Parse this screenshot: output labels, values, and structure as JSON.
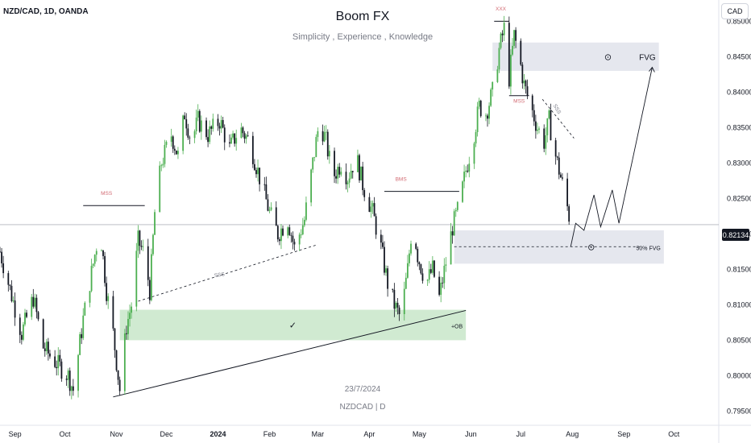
{
  "header": {
    "symbol_line": "NZD/CAD, 1D, OANDA",
    "currency_button": "CAD",
    "title": "Boom FX",
    "subtitle": "Simplicity , Experience , Knowledge",
    "watermark_date": "23/7/2024",
    "watermark_symbol": "NZDCAD | D",
    "last_price": "0.82134"
  },
  "colors": {
    "up": "#4caf50",
    "down": "#131722",
    "ob_zone": "#c8e6c9",
    "fvg_zone": "#e0e3eb",
    "annotation_red": "#d26a72"
  },
  "chart_data": {
    "type": "candlestick",
    "ylim": [
      0.793,
      0.853
    ],
    "y_ticks": [
      0.795,
      0.8,
      0.805,
      0.81,
      0.815,
      0.82,
      0.825,
      0.83,
      0.835,
      0.84,
      0.845,
      0.85
    ],
    "y_tick_labels": [
      "0.79500",
      "0.80000",
      "0.80500",
      "0.81000",
      "0.81500",
      "0.82000",
      "0.82500",
      "0.83000",
      "0.83500",
      "0.84000",
      "0.84500",
      "0.85000"
    ],
    "x_range": [
      "2023-08-23",
      "2024-10-28"
    ],
    "x_ticks": [
      {
        "date": "2023-09-01",
        "label": "Sep",
        "bold": false
      },
      {
        "date": "2023-10-01",
        "label": "Oct",
        "bold": false
      },
      {
        "date": "2023-11-01",
        "label": "Nov",
        "bold": false
      },
      {
        "date": "2023-12-01",
        "label": "Dec",
        "bold": false
      },
      {
        "date": "2024-01-01",
        "label": "2024",
        "bold": true
      },
      {
        "date": "2024-02-01",
        "label": "Feb",
        "bold": false
      },
      {
        "date": "2024-03-01",
        "label": "Mar",
        "bold": false
      },
      {
        "date": "2024-04-01",
        "label": "Apr",
        "bold": false
      },
      {
        "date": "2024-05-01",
        "label": "May",
        "bold": false
      },
      {
        "date": "2024-06-01",
        "label": "Jun",
        "bold": false
      },
      {
        "date": "2024-07-01",
        "label": "Jul",
        "bold": false
      },
      {
        "date": "2024-08-01",
        "label": "Aug",
        "bold": false
      },
      {
        "date": "2024-09-01",
        "label": "Sep",
        "bold": false
      },
      {
        "date": "2024-10-01",
        "label": "Oct",
        "bold": false
      }
    ],
    "price_path": [
      [
        "2023-08-23",
        0.8175
      ],
      [
        "2023-09-05",
        0.806
      ],
      [
        "2023-09-12",
        0.811
      ],
      [
        "2023-09-18",
        0.804
      ],
      [
        "2023-09-25",
        0.802
      ],
      [
        "2023-10-03",
        0.8
      ],
      [
        "2023-10-06",
        0.798
      ],
      [
        "2023-10-12",
        0.808
      ],
      [
        "2023-10-17",
        0.8145
      ],
      [
        "2023-10-22",
        0.821
      ],
      [
        "2023-10-26",
        0.812
      ],
      [
        "2023-10-30",
        0.806
      ],
      [
        "2023-11-03",
        0.798
      ],
      [
        "2023-11-07",
        0.807
      ],
      [
        "2023-11-10",
        0.81
      ],
      [
        "2023-11-14",
        0.819
      ],
      [
        "2023-11-18",
        0.817
      ],
      [
        "2023-11-21",
        0.812
      ],
      [
        "2023-11-24",
        0.823
      ],
      [
        "2023-11-28",
        0.83
      ],
      [
        "2023-12-04",
        0.834
      ],
      [
        "2023-12-08",
        0.831
      ],
      [
        "2023-12-12",
        0.837
      ],
      [
        "2023-12-16",
        0.833
      ],
      [
        "2023-12-20",
        0.836
      ],
      [
        "2023-12-26",
        0.834
      ],
      [
        "2024-01-02",
        0.836
      ],
      [
        "2024-01-08",
        0.832
      ],
      [
        "2024-01-14",
        0.835
      ],
      [
        "2024-01-20",
        0.833
      ],
      [
        "2024-01-26",
        0.828
      ],
      [
        "2024-02-01",
        0.823
      ],
      [
        "2024-02-06",
        0.82
      ],
      [
        "2024-02-12",
        0.822
      ],
      [
        "2024-02-16",
        0.818
      ],
      [
        "2024-02-22",
        0.822
      ],
      [
        "2024-02-27",
        0.83
      ],
      [
        "2024-03-02",
        0.836
      ],
      [
        "2024-03-06",
        0.833
      ],
      [
        "2024-03-10",
        0.828
      ],
      [
        "2024-03-15",
        0.83
      ],
      [
        "2024-03-19",
        0.828
      ],
      [
        "2024-03-24",
        0.831
      ],
      [
        "2024-03-28",
        0.827
      ],
      [
        "2024-04-03",
        0.823
      ],
      [
        "2024-04-08",
        0.818
      ],
      [
        "2024-04-12",
        0.813
      ],
      [
        "2024-04-16",
        0.81
      ],
      [
        "2024-04-20",
        0.808
      ],
      [
        "2024-04-24",
        0.815
      ],
      [
        "2024-04-27",
        0.822
      ],
      [
        "2024-04-30",
        0.817
      ],
      [
        "2024-05-05",
        0.813
      ],
      [
        "2024-05-09",
        0.815
      ],
      [
        "2024-05-13",
        0.811
      ],
      [
        "2024-05-17",
        0.816
      ],
      [
        "2024-05-21",
        0.821
      ],
      [
        "2024-05-25",
        0.824
      ],
      [
        "2024-05-29",
        0.829
      ],
      [
        "2024-06-02",
        0.833
      ],
      [
        "2024-06-06",
        0.838
      ],
      [
        "2024-06-10",
        0.837
      ],
      [
        "2024-06-14",
        0.84
      ],
      [
        "2024-06-18",
        0.846
      ],
      [
        "2024-06-21",
        0.849
      ],
      [
        "2024-06-24",
        0.842
      ],
      [
        "2024-06-27",
        0.848
      ],
      [
        "2024-06-30",
        0.845
      ],
      [
        "2024-07-03",
        0.841
      ],
      [
        "2024-07-07",
        0.838
      ],
      [
        "2024-07-11",
        0.835
      ],
      [
        "2024-07-15",
        0.833
      ],
      [
        "2024-07-18",
        0.836
      ],
      [
        "2024-07-21",
        0.832
      ],
      [
        "2024-07-24",
        0.829
      ],
      [
        "2024-07-28",
        0.825
      ],
      [
        "2024-07-31",
        0.8213
      ]
    ],
    "zones": [
      {
        "label": "+OB",
        "from": "2023-11-03",
        "to": "2024-05-29",
        "top": 0.8093,
        "bottom": 0.805,
        "color": "#c8e6c9",
        "mark": "✓"
      },
      {
        "label": "FVG",
        "from": "2024-06-14",
        "to": "2024-09-22",
        "top": 0.847,
        "bottom": 0.843,
        "color": "#e0e3eb",
        "mark": "⊙"
      },
      {
        "label": "50% FVG",
        "from": "2024-05-22",
        "to": "2024-09-25",
        "top": 0.8205,
        "bottom": 0.8158,
        "color": "#e0e3eb",
        "mark": "⊙"
      }
    ],
    "annotations": [
      {
        "text": "MSS",
        "date": "2023-10-26",
        "price": 0.8255,
        "color": "#d26a72"
      },
      {
        "text": "SSS",
        "date": "2024-01-02",
        "price": 0.814,
        "color": "#787b86"
      },
      {
        "text": "BMS",
        "date": "2024-04-20",
        "price": 0.8275,
        "color": "#d26a72"
      },
      {
        "text": "XXX",
        "date": "2024-06-19",
        "price": 0.8515,
        "color": "#d26a72"
      },
      {
        "text": "MSS",
        "date": "2024-06-30",
        "price": 0.8385,
        "color": "#d26a72"
      },
      {
        "text": "SSS",
        "date": "2024-07-22",
        "price": 0.8375,
        "color": "#787b86"
      }
    ]
  }
}
